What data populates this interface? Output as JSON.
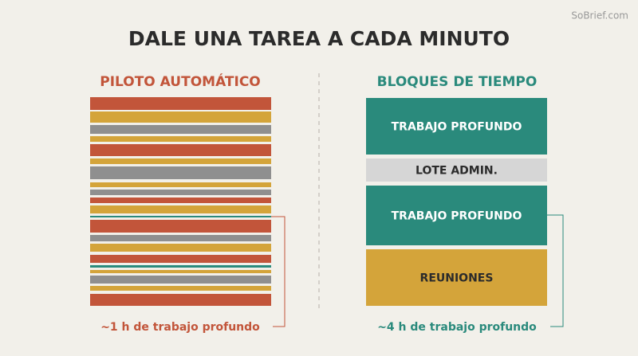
{
  "watermark": "SoBrief.com",
  "title": "DALE UNA TAREA A CADA MINUTO",
  "left": {
    "heading": "PILOTO AUTOMÁTICO",
    "caption": "~1 h de trabajo profundo"
  },
  "right": {
    "heading": "BLOQUES DE TIEMPO",
    "blocks": [
      "TRABAJO PROFUNDO",
      "LOTE ADMIN.",
      "TRABAJO PROFUNDO",
      "REUNIONES"
    ],
    "caption": "~4 h de trabajo profundo"
  }
}
